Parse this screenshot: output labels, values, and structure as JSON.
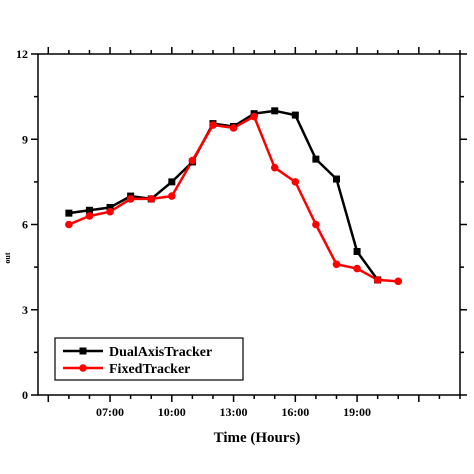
{
  "chart_data": {
    "type": "line",
    "xlabel": "Time (Hours)",
    "ylabel_fragment": "out",
    "x_tick_labels": [
      "07:00",
      "10:00",
      "13:00",
      "16:00",
      "19:00"
    ],
    "x_tick_values": [
      7,
      10,
      13,
      16,
      19
    ],
    "xlim": [
      3.5,
      24
    ],
    "y_tick_labels": [
      "0",
      "3",
      "6",
      "9",
      "12"
    ],
    "y_tick_values": [
      0,
      3,
      6,
      9,
      12
    ],
    "ylim": [
      0,
      12
    ],
    "legend_position": "bottom-left",
    "series": [
      {
        "name": "DualAxisTracker",
        "color": "#000000",
        "marker": "square",
        "x": [
          5,
          6,
          7,
          8,
          9,
          10,
          11,
          12,
          13,
          14,
          15,
          16,
          17,
          18,
          19,
          20
        ],
        "values": [
          6.4,
          6.5,
          6.6,
          7.0,
          6.9,
          7.5,
          8.2,
          9.55,
          9.45,
          9.9,
          10.0,
          9.85,
          8.3,
          7.6,
          5.05,
          4.05
        ]
      },
      {
        "name": "FixedTracker",
        "color": "#ff0000",
        "marker": "circle",
        "x": [
          5,
          6,
          7,
          8,
          9,
          10,
          11,
          12,
          13,
          14,
          15,
          16,
          17,
          18,
          19,
          20,
          21
        ],
        "values": [
          6.0,
          6.3,
          6.45,
          6.9,
          6.9,
          7.0,
          8.25,
          9.5,
          9.4,
          9.8,
          8.0,
          7.5,
          6.0,
          4.6,
          4.45,
          4.05,
          4.0
        ]
      }
    ]
  }
}
